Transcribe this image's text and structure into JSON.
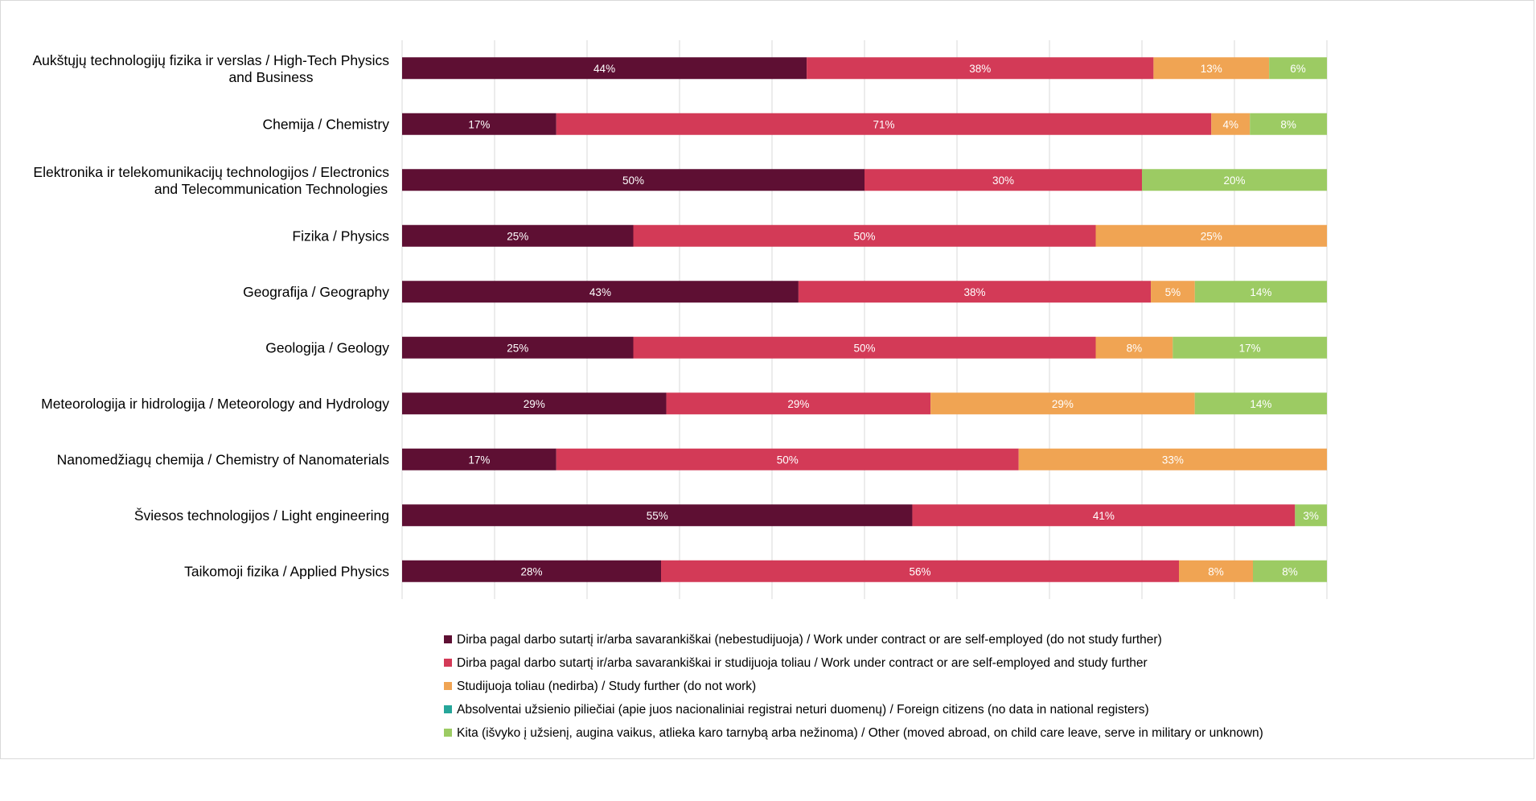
{
  "colors": {
    "work_only": "#5e0f33",
    "work_and_study": "#d33a57",
    "study_only": "#f0a453",
    "foreign": "#26a69a",
    "other": "#9ccb63",
    "grid": "#d9d9d9"
  },
  "chart_data": {
    "type": "bar",
    "orientation": "horizontal",
    "stacked": true,
    "percent": true,
    "title": "",
    "xlabel": "",
    "ylabel": "",
    "xlim": [
      0,
      100
    ],
    "grid": true,
    "legend_position": "bottom",
    "categories": [
      [
        "Aukštųjų technologijų fizika ir verslas / High-Tech Physics",
        "and Business"
      ],
      [
        "Chemija / Chemistry"
      ],
      [
        "Elektronika ir telekomunikacijų technologijos / Electronics",
        "and Telecommunication Technologies"
      ],
      [
        "Fizika / Physics"
      ],
      [
        "Geografija / Geography"
      ],
      [
        "Geologija / Geology"
      ],
      [
        "Meteorologija ir hidrologija / Meteorology and Hydrology"
      ],
      [
        "Nanomedžiagų chemija / Chemistry of Nanomaterials"
      ],
      [
        "Šviesos technologijos / Light engineering"
      ],
      [
        "Taikomoji fizika / Applied Physics"
      ]
    ],
    "series": [
      {
        "name": "Dirba pagal darbo sutartį ir/arba savarankiškai (nebestudijuoja) / Work under contract or are self-employed (do not study further)",
        "color_key": "work_only",
        "values": [
          43.75,
          16.67,
          50,
          25,
          42.86,
          25,
          28.57,
          16.67,
          55.17,
          28
        ],
        "labels": [
          "44%",
          "17%",
          "50%",
          "25%",
          "43%",
          "25%",
          "29%",
          "17%",
          "55%",
          "28%"
        ]
      },
      {
        "name": "Dirba pagal darbo sutartį ir/arba savarankiškai  ir studijuoja toliau / Work under contract or are self-employed and study further",
        "color_key": "work_and_study",
        "values": [
          37.5,
          70.83,
          30,
          50,
          38.1,
          50,
          28.57,
          50,
          41.38,
          56
        ],
        "labels": [
          "38%",
          "71%",
          "30%",
          "50%",
          "38%",
          "50%",
          "29%",
          "50%",
          "41%",
          "56%"
        ]
      },
      {
        "name": "Studijuoja toliau (nedirba) / Study further (do not work)",
        "color_key": "study_only",
        "values": [
          12.5,
          4.17,
          0,
          25,
          4.76,
          8.33,
          28.57,
          33.33,
          0,
          8
        ],
        "labels": [
          "13%",
          "4%",
          "",
          "25%",
          "5%",
          "8%",
          "29%",
          "33%",
          "",
          "8%"
        ]
      },
      {
        "name": "Absolventai užsienio piliečiai (apie juos nacionaliniai registrai neturi duomenų) / Foreign citizens (no data in national registers)",
        "color_key": "foreign",
        "values": [
          0,
          0,
          0,
          0,
          0,
          0,
          0,
          0,
          0,
          0
        ],
        "labels": [
          "",
          "",
          "",
          "",
          "",
          "",
          "",
          "",
          "",
          ""
        ]
      },
      {
        "name": "Kita (išvyko į užsienį, augina vaikus, atlieka karo tarnybą arba nežinoma) / Other (moved abroad, on child care leave, serve in military or unknown)",
        "color_key": "other",
        "values": [
          6.25,
          8.33,
          20,
          0,
          14.28,
          16.67,
          14.29,
          0,
          3.45,
          8
        ],
        "labels": [
          "6%",
          "8%",
          "20%",
          "",
          "14%",
          "17%",
          "14%",
          "",
          "3%",
          "8%"
        ]
      }
    ]
  }
}
